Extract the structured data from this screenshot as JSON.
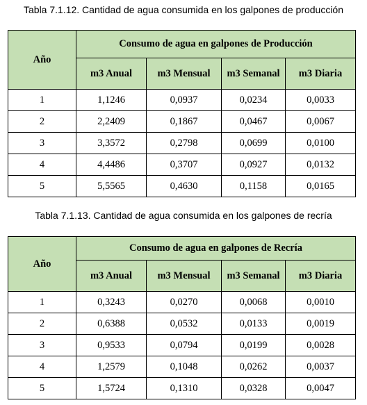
{
  "tables": [
    {
      "caption": "Tabla 7.1.12. Cantidad de agua consumida en los galpones de producción",
      "header_year": "Año",
      "header_group": "Consumo de agua en galpones de Producción",
      "columns": [
        "m3 Anual",
        "m3 Mensual",
        "m3 Semanal",
        "m3 Diaria"
      ],
      "rows": [
        [
          "1",
          "1,1246",
          "0,0937",
          "0,0234",
          "0,0033"
        ],
        [
          "2",
          "2,2409",
          "0,1867",
          "0,0467",
          "0,0067"
        ],
        [
          "3",
          "3,3572",
          "0,2798",
          "0,0699",
          "0,0100"
        ],
        [
          "4",
          "4,4486",
          "0,3707",
          "0,0927",
          "0,0132"
        ],
        [
          "5",
          "5,5565",
          "0,4630",
          "0,1158",
          "0,0165"
        ]
      ]
    },
    {
      "caption": "Tabla 7.1.13. Cantidad de agua consumida en los galpones de recría",
      "header_year": "Año",
      "header_group": "Consumo de agua en galpones de Recría",
      "columns": [
        "m3 Anual",
        "m3 Mensual",
        "m3 Semanal",
        "m3 Diaria"
      ],
      "rows": [
        [
          "1",
          "0,3243",
          "0,0270",
          "0,0068",
          "0,0010"
        ],
        [
          "2",
          "0,6388",
          "0,0532",
          "0,0133",
          "0,0019"
        ],
        [
          "3",
          "0,9533",
          "0,0794",
          "0,0199",
          "0,0028"
        ],
        [
          "4",
          "1,2579",
          "0,1048",
          "0,0262",
          "0,0037"
        ],
        [
          "5",
          "1,5724",
          "0,1310",
          "0,0328",
          "0,0047"
        ]
      ]
    }
  ],
  "colors": {
    "header_bg": "#c5dfb4",
    "border": "#000000"
  }
}
